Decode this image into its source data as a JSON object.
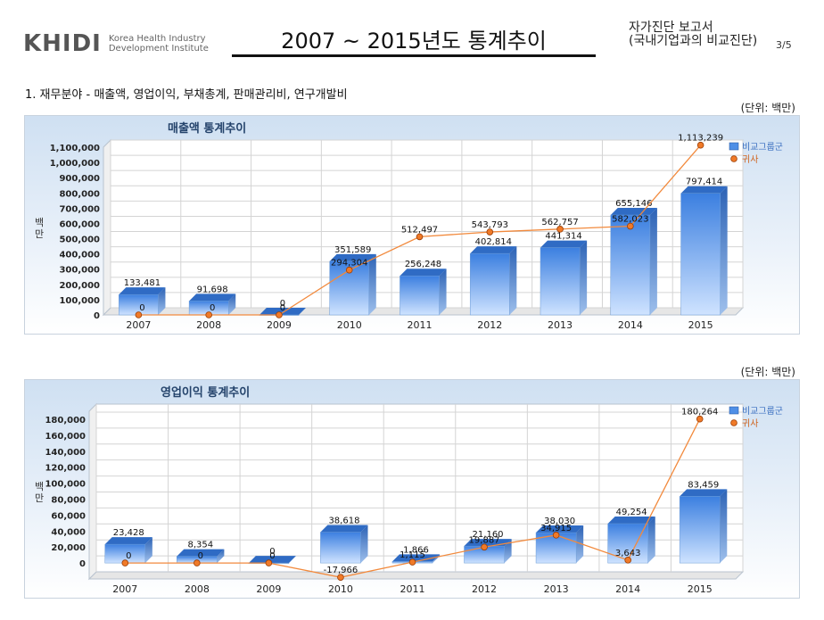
{
  "header": {
    "logo_mark": "KHIDI",
    "logo_line1": "Korea Health Industry",
    "logo_line2": "Development Institute",
    "title": "2007 ~ 2015년도 통계추이",
    "report_line1": "자가진단 보고서",
    "report_line2": "(국내기업과의 비교진단)",
    "page": "3/5"
  },
  "section_title": "1. 재무분야 - 매출액, 영업이익, 부채총계, 판매관리비, 연구개발비",
  "unit_label": "(단위: 백만)",
  "colors": {
    "bar": "#4f8fe6",
    "line": "#f28a3d",
    "marker": "#e06418",
    "plot_bg": "#ffffff"
  },
  "chart_data": [
    {
      "type": "bar",
      "title": "매출액 통계추이",
      "ylabel": "백만",
      "categories": [
        "2007",
        "2008",
        "2009",
        "2010",
        "2011",
        "2012",
        "2013",
        "2014",
        "2015"
      ],
      "ylim": [
        0,
        1100000
      ],
      "yticks": [
        0,
        100000,
        200000,
        300000,
        400000,
        500000,
        600000,
        700000,
        800000,
        900000,
        1000000,
        1100000
      ],
      "series": [
        {
          "name": "비교그룹군",
          "kind": "bar",
          "values": [
            133481,
            91698,
            0,
            351589,
            256248,
            402814,
            441314,
            655146,
            797414
          ],
          "labels": [
            "133,481",
            "91,698",
            "0",
            "351,589",
            "256,248",
            "402,814",
            "441,314",
            "655,146",
            "797,414"
          ]
        },
        {
          "name": "귀사",
          "kind": "line",
          "values": [
            0,
            0,
            0,
            294304,
            512497,
            543793,
            562757,
            582023,
            1113239
          ],
          "labels": [
            "0",
            "0",
            "0",
            "294,304",
            "512,497",
            "543,793",
            "562,757",
            "582,023",
            "1,113,239"
          ]
        }
      ],
      "legend": "top-right",
      "grid": true
    },
    {
      "type": "bar",
      "title": "영업이익 통계추이",
      "ylabel": "백만",
      "categories": [
        "2007",
        "2008",
        "2009",
        "2010",
        "2011",
        "2012",
        "2013",
        "2014",
        "2015"
      ],
      "ylim": [
        -20000,
        190000
      ],
      "yticks": [
        0,
        20000,
        40000,
        60000,
        80000,
        100000,
        120000,
        140000,
        160000,
        180000
      ],
      "series": [
        {
          "name": "비교그룹군",
          "kind": "bar",
          "values": [
            23428,
            8354,
            0,
            38618,
            1866,
            21160,
            38030,
            49254,
            83459
          ],
          "labels": [
            "23,428",
            "8,354",
            "0",
            "38,618",
            "1,866",
            "21,160",
            "38,030",
            "49,254",
            "83,459"
          ]
        },
        {
          "name": "귀사",
          "kind": "line",
          "values": [
            0,
            0,
            0,
            -17966,
            1115,
            19887,
            34915,
            3643,
            180264
          ],
          "labels": [
            "0",
            "0",
            "0",
            "-17,966",
            "1,115",
            "19,887",
            "34,915",
            "3,643",
            "180,264"
          ]
        }
      ],
      "legend": "top-right",
      "grid": true
    }
  ]
}
